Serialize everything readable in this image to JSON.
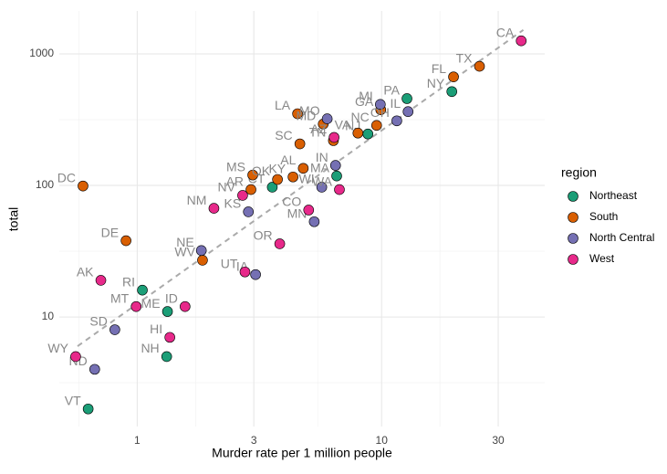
{
  "chart_data": {
    "type": "scatter",
    "x_label": "Murder rate per 1 million people",
    "y_label": "total",
    "x_scale": "log",
    "y_scale": "log",
    "grid": true,
    "xlim": [
      0.48,
      46.5
    ],
    "ylim": [
      1.47,
      2120
    ],
    "xticks": [
      1,
      3,
      10,
      30
    ],
    "yticks": [
      10,
      100,
      1000
    ],
    "legend_title": "region",
    "legend_position": "right",
    "trend_line": {
      "x": [
        0.57,
        38
      ],
      "y": [
        6,
        1520
      ],
      "color": "#aaaaaa"
    },
    "series": [
      {
        "name": "Northeast",
        "color": "#1b9e77",
        "x": [
          3.57,
          1.33,
          6.55,
          1.32,
          8.79,
          19.38,
          12.7,
          1.05,
          0.63
        ],
        "values": [
          97,
          11,
          118,
          5,
          246,
          517,
          457,
          16,
          2
        ],
        "labels": [
          "CT",
          "ME",
          "MA",
          "NH",
          "NJ",
          "NY",
          "PA",
          "RI",
          "VT"
        ]
      },
      {
        "name": "South",
        "color": "#d95f02",
        "x": [
          4.78,
          2.92,
          0.9,
          0.6,
          19.69,
          9.92,
          4.34,
          4.53,
          5.77,
          2.97,
          9.54,
          3.75,
          4.63,
          6.35,
          25.15,
          8.0,
          1.85
        ],
        "values": [
          135,
          93,
          38,
          99,
          669,
          376,
          116,
          351,
          293,
          120,
          286,
          111,
          207,
          219,
          805,
          250,
          27
        ],
        "labels": [
          "AL",
          "AR",
          "DE",
          "DC",
          "FL",
          "GA",
          "KY",
          "LA",
          "MD",
          "MS",
          "NC",
          "OK",
          "SC",
          "TN",
          "TX",
          "VA",
          "WV"
        ]
      },
      {
        "name": "North Central",
        "color": "#7570b3",
        "x": [
          12.83,
          6.48,
          3.05,
          2.85,
          9.88,
          5.3,
          5.99,
          1.83,
          0.67,
          11.54,
          0.81,
          5.69
        ],
        "values": [
          364,
          142,
          21,
          63,
          413,
          53,
          321,
          32,
          4,
          310,
          8,
          97
        ],
        "labels": [
          "IL",
          "IN",
          "IA",
          "KS",
          "MI",
          "MN",
          "MO",
          "NE",
          "ND",
          "OH",
          "SD",
          "WI"
        ]
      },
      {
        "name": "West",
        "color": "#e7298a",
        "x": [
          0.71,
          6.39,
          37.25,
          5.03,
          1.36,
          1.57,
          0.99,
          2.7,
          2.06,
          3.83,
          2.76,
          6.72,
          0.56
        ],
        "values": [
          19,
          232,
          1257,
          65,
          7,
          12,
          12,
          84,
          67,
          36,
          22,
          93,
          5
        ],
        "labels": [
          "AK",
          "AZ",
          "CA",
          "CO",
          "HI",
          "ID",
          "MT",
          "NV",
          "NM",
          "OR",
          "UT",
          "WA",
          "WY"
        ]
      }
    ]
  }
}
